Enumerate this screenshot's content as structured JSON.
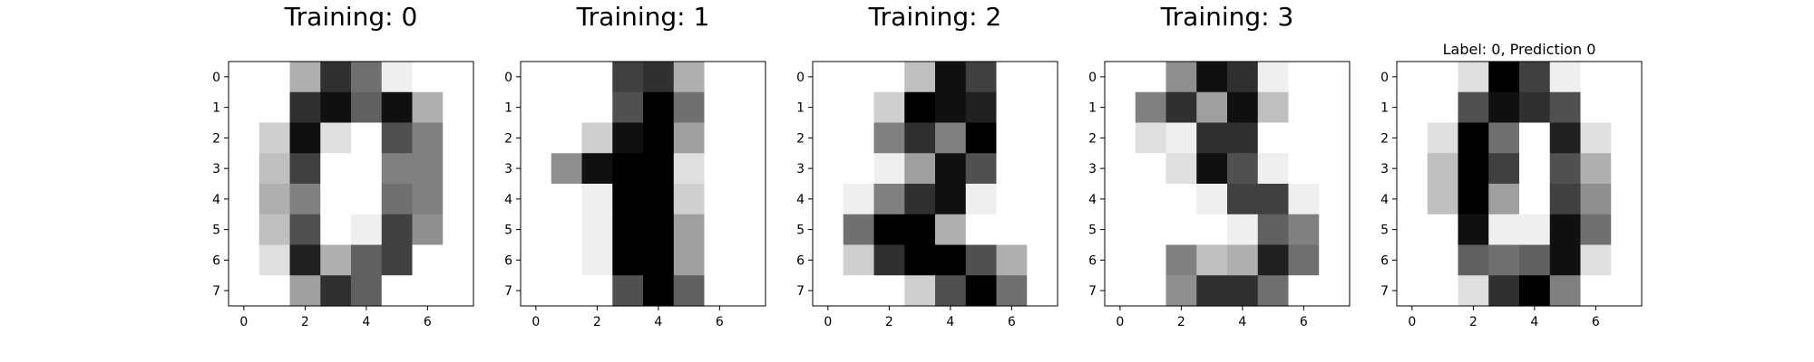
{
  "chart_data": [
    {
      "type": "heatmap",
      "title": "Training: 0",
      "colormap": "gray_r",
      "vmin": 0,
      "vmax": 16,
      "x_ticks": [
        0,
        2,
        4,
        6
      ],
      "y_ticks": [
        0,
        1,
        2,
        3,
        4,
        5,
        6,
        7
      ],
      "values": [
        [
          0,
          0,
          5,
          13,
          9,
          1,
          0,
          0
        ],
        [
          0,
          0,
          13,
          15,
          10,
          15,
          5,
          0
        ],
        [
          0,
          3,
          15,
          2,
          0,
          11,
          8,
          0
        ],
        [
          0,
          4,
          12,
          0,
          0,
          8,
          8,
          0
        ],
        [
          0,
          5,
          8,
          0,
          0,
          9,
          8,
          0
        ],
        [
          0,
          4,
          11,
          0,
          1,
          12,
          7,
          0
        ],
        [
          0,
          2,
          14,
          5,
          10,
          12,
          0,
          0
        ],
        [
          0,
          0,
          6,
          13,
          10,
          0,
          0,
          0
        ]
      ]
    },
    {
      "type": "heatmap",
      "title": "Training: 1",
      "colormap": "gray_r",
      "vmin": 0,
      "vmax": 16,
      "x_ticks": [
        0,
        2,
        4,
        6
      ],
      "y_ticks": [
        0,
        1,
        2,
        3,
        4,
        5,
        6,
        7
      ],
      "values": [
        [
          0,
          0,
          0,
          12,
          13,
          5,
          0,
          0
        ],
        [
          0,
          0,
          0,
          11,
          16,
          9,
          0,
          0
        ],
        [
          0,
          0,
          3,
          15,
          16,
          6,
          0,
          0
        ],
        [
          0,
          7,
          15,
          16,
          16,
          2,
          0,
          0
        ],
        [
          0,
          0,
          1,
          16,
          16,
          3,
          0,
          0
        ],
        [
          0,
          0,
          1,
          16,
          16,
          6,
          0,
          0
        ],
        [
          0,
          0,
          1,
          16,
          16,
          6,
          0,
          0
        ],
        [
          0,
          0,
          0,
          11,
          16,
          10,
          0,
          0
        ]
      ]
    },
    {
      "type": "heatmap",
      "title": "Training: 2",
      "colormap": "gray_r",
      "vmin": 0,
      "vmax": 16,
      "x_ticks": [
        0,
        2,
        4,
        6
      ],
      "y_ticks": [
        0,
        1,
        2,
        3,
        4,
        5,
        6,
        7
      ],
      "values": [
        [
          0,
          0,
          0,
          4,
          15,
          12,
          0,
          0
        ],
        [
          0,
          0,
          3,
          16,
          15,
          14,
          0,
          0
        ],
        [
          0,
          0,
          8,
          13,
          8,
          16,
          0,
          0
        ],
        [
          0,
          0,
          1,
          6,
          15,
          11,
          0,
          0
        ],
        [
          0,
          1,
          8,
          13,
          15,
          1,
          0,
          0
        ],
        [
          0,
          9,
          16,
          16,
          5,
          0,
          0,
          0
        ],
        [
          0,
          3,
          13,
          16,
          16,
          11,
          5,
          0
        ],
        [
          0,
          0,
          0,
          3,
          11,
          16,
          9,
          0
        ]
      ]
    },
    {
      "type": "heatmap",
      "title": "Training: 3",
      "colormap": "gray_r",
      "vmin": 0,
      "vmax": 16,
      "x_ticks": [
        0,
        2,
        4,
        6
      ],
      "y_ticks": [
        0,
        1,
        2,
        3,
        4,
        5,
        6,
        7
      ],
      "values": [
        [
          0,
          0,
          7,
          15,
          13,
          1,
          0,
          0
        ],
        [
          0,
          8,
          13,
          6,
          15,
          4,
          0,
          0
        ],
        [
          0,
          2,
          1,
          13,
          13,
          0,
          0,
          0
        ],
        [
          0,
          0,
          2,
          15,
          11,
          1,
          0,
          0
        ],
        [
          0,
          0,
          0,
          1,
          12,
          12,
          1,
          0
        ],
        [
          0,
          0,
          0,
          0,
          1,
          10,
          8,
          0
        ],
        [
          0,
          0,
          8,
          4,
          5,
          14,
          9,
          0
        ],
        [
          0,
          0,
          7,
          13,
          13,
          9,
          0,
          0
        ]
      ]
    },
    {
      "type": "heatmap",
      "title": "Label: 0, Prediction 0",
      "colormap": "gray_r",
      "vmin": 0,
      "vmax": 16,
      "x_ticks": [
        0,
        2,
        4,
        6
      ],
      "y_ticks": [
        0,
        1,
        2,
        3,
        4,
        5,
        6,
        7
      ],
      "values": [
        [
          0,
          0,
          2,
          16,
          12,
          1,
          0,
          0
        ],
        [
          0,
          0,
          11,
          15,
          13,
          11,
          0,
          0
        ],
        [
          0,
          2,
          16,
          9,
          0,
          14,
          2,
          0
        ],
        [
          0,
          4,
          16,
          12,
          0,
          11,
          5,
          0
        ],
        [
          0,
          4,
          16,
          6,
          0,
          12,
          7,
          0
        ],
        [
          0,
          0,
          15,
          1,
          1,
          15,
          9,
          0
        ],
        [
          0,
          0,
          10,
          9,
          10,
          15,
          2,
          0
        ],
        [
          0,
          0,
          2,
          13,
          16,
          8,
          0,
          0
        ]
      ]
    }
  ]
}
